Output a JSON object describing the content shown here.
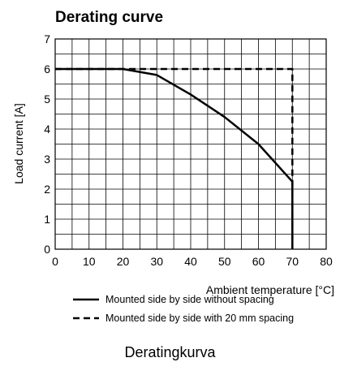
{
  "chart_data": {
    "type": "line",
    "title": "Derating curve",
    "xlabel": "Ambient temperature [°C]",
    "ylabel": "Load current [A]",
    "xlim": [
      0,
      80
    ],
    "ylim": [
      0,
      7
    ],
    "x_ticks": [
      0,
      10,
      20,
      30,
      40,
      50,
      60,
      70,
      80
    ],
    "y_ticks": [
      0,
      1,
      2,
      3,
      4,
      5,
      6,
      7
    ],
    "grid": true,
    "minor_grid": true,
    "legend_placement": "bottom",
    "series": [
      {
        "name": "Mounted side by side without spacing",
        "line_style": "solid",
        "x": [
          0,
          20,
          30,
          40,
          50,
          60,
          70,
          70
        ],
        "y": [
          6,
          6,
          5.8,
          5.15,
          4.4,
          3.5,
          2.25,
          0
        ]
      },
      {
        "name": "Mounted side by side with 20 mm spacing",
        "line_style": "dashed",
        "x": [
          0,
          70,
          70
        ],
        "y": [
          6,
          6,
          0
        ]
      }
    ],
    "colors": {
      "lines": "#000000",
      "grid": "#000000"
    }
  },
  "caption": "Deratingkurva"
}
